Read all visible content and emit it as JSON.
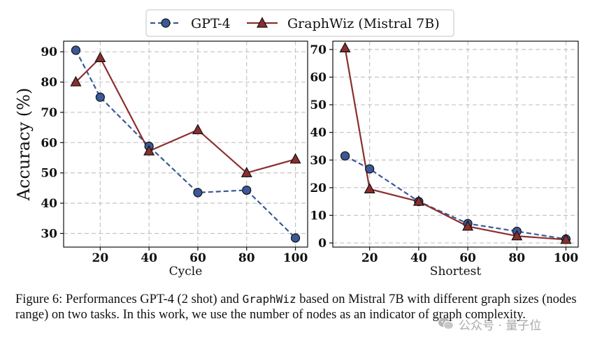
{
  "chart_data": [
    {
      "type": "line",
      "xlabel": "Cycle",
      "ylabel": "Accuracy (%)",
      "x": [
        10,
        20,
        40,
        60,
        80,
        100
      ],
      "xticks": [
        20,
        40,
        60,
        80,
        100
      ],
      "yticks": [
        30,
        40,
        50,
        60,
        70,
        80,
        90
      ],
      "xlim": [
        5,
        105
      ],
      "ylim": [
        25.5,
        93.5
      ],
      "grid": true,
      "series": [
        {
          "name": "GPT-4",
          "values": [
            90.5,
            75.0,
            58.8,
            43.5,
            44.3,
            28.5
          ],
          "color": "#3b5998",
          "style": "dashed",
          "marker": "circle"
        },
        {
          "name": "GraphWiz (Mistral 7B)",
          "values": [
            80.0,
            88.0,
            57.2,
            64.2,
            50.0,
            54.5
          ],
          "color": "#8b2e2e",
          "style": "solid",
          "marker": "triangle"
        }
      ]
    },
    {
      "type": "line",
      "xlabel": "Shortest",
      "ylabel": "",
      "x": [
        10,
        20,
        40,
        60,
        80,
        100
      ],
      "xticks": [
        20,
        40,
        60,
        80,
        100
      ],
      "yticks": [
        0,
        10,
        20,
        30,
        40,
        50,
        60,
        70
      ],
      "xlim": [
        5,
        105
      ],
      "ylim": [
        -1.5,
        73
      ],
      "grid": true,
      "series": [
        {
          "name": "GPT-4",
          "values": [
            31.5,
            26.8,
            15.0,
            7.0,
            4.2,
            1.4
          ],
          "color": "#3b5998",
          "style": "dashed",
          "marker": "circle"
        },
        {
          "name": "GraphWiz (Mistral 7B)",
          "values": [
            70.5,
            19.5,
            15.0,
            6.0,
            2.5,
            1.2
          ],
          "color": "#8b2e2e",
          "style": "solid",
          "marker": "triangle"
        }
      ]
    }
  ],
  "legend": {
    "placement": "top-center",
    "entries": [
      "GPT-4",
      "GraphWiz (Mistral 7B)"
    ]
  },
  "caption": {
    "part1": "Figure 6: Performances GPT-4 (2 shot) and ",
    "mono": "GraphWiz",
    "part2": " based on Mistral 7B with different graph sizes (nodes range) on two tasks. In this work, we use the number of nodes as an indicator of graph complexity."
  },
  "watermark": {
    "icon": "wechat-icon",
    "text": "公众号 · 量子位"
  }
}
